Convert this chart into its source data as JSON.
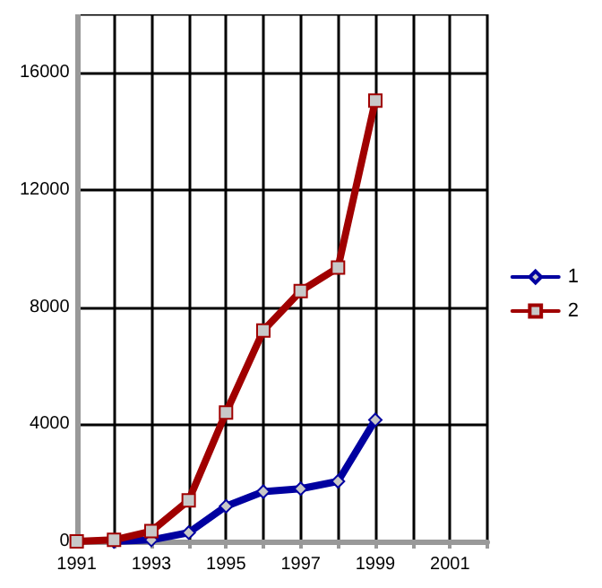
{
  "chart_data": {
    "type": "line",
    "x": [
      1991,
      1992,
      1993,
      1994,
      1995,
      1996,
      1997,
      1998,
      1999
    ],
    "series": [
      {
        "name": "1",
        "color": "#0000a0",
        "marker": "diamond",
        "values": [
          null,
          0,
          50,
          300,
          1200,
          1700,
          1800,
          2050,
          4150
        ]
      },
      {
        "name": "2",
        "color": "#a00000",
        "marker": "square",
        "values": [
          0,
          50,
          350,
          1400,
          4400,
          7200,
          8550,
          9350,
          15050
        ]
      }
    ],
    "xlim": [
      1991,
      2002
    ],
    "xticks": [
      1991,
      {
        "value": 1992,
        "label": null
      },
      1993,
      {
        "value": 1994,
        "label": null
      },
      1995,
      {
        "value": 1996,
        "label": null
      },
      1997,
      {
        "value": 1998,
        "label": null
      },
      1999,
      {
        "value": 2000,
        "label": null
      },
      2001,
      {
        "value": 2002,
        "label": null
      }
    ],
    "ylim": [
      0,
      18000
    ],
    "yticks": [
      0,
      4000,
      8000,
      12000,
      16000
    ],
    "grid": true,
    "legend": "right",
    "line_style": "solid"
  }
}
